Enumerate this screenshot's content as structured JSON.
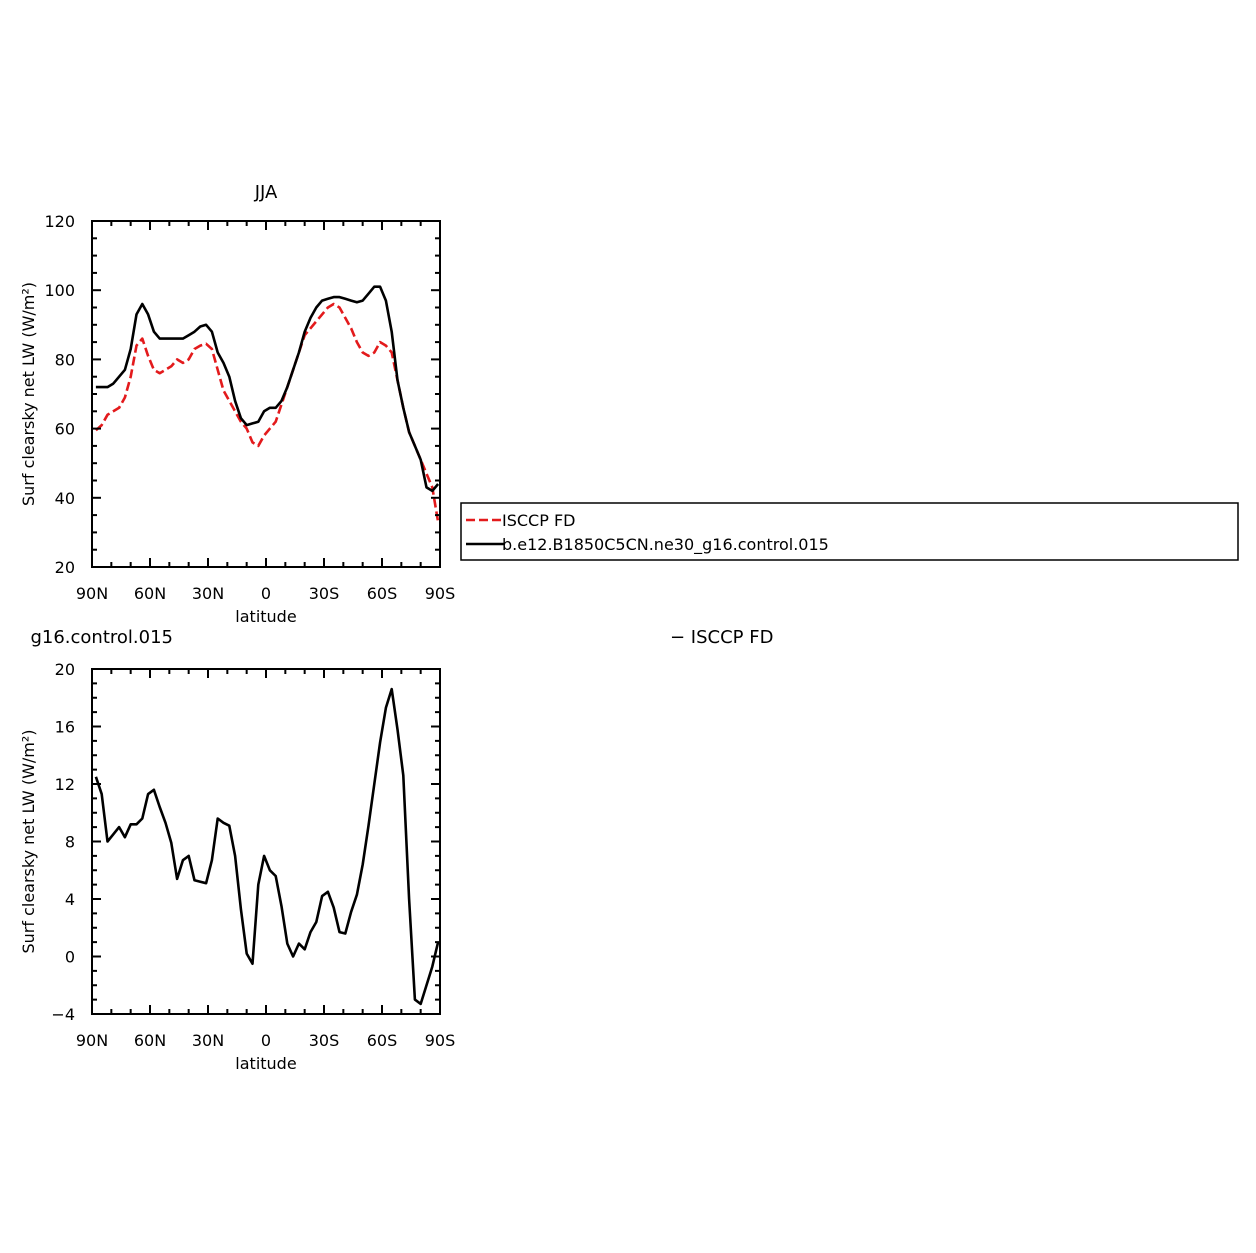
{
  "chart_data": [
    {
      "type": "line",
      "title": "JJA",
      "xlabel": "latitude",
      "ylabel": "Surf clearsky net LW (W/m²)",
      "ylim": [
        20,
        120
      ],
      "yticks": [
        20,
        40,
        60,
        80,
        100,
        120
      ],
      "xlim": [
        90,
        -90
      ],
      "xtick_values": [
        90,
        60,
        30,
        0,
        -30,
        -60,
        -90
      ],
      "xtick_labels": [
        "90N",
        "60N",
        "30N",
        "0",
        "30S",
        "60S",
        "90S"
      ],
      "legend": "right, outside plot",
      "series": [
        {
          "name": "ISCCP FD",
          "color": "#e31a1c",
          "style": "dashed",
          "x": [
            88,
            85,
            82,
            79,
            76,
            73,
            70,
            67,
            64,
            61,
            58,
            55,
            52,
            49,
            46,
            43,
            40,
            37,
            34,
            31,
            28,
            25,
            22,
            19,
            16,
            13,
            10,
            7,
            4,
            1,
            -2,
            -5,
            -8,
            -11,
            -14,
            -17,
            -20,
            -23,
            -26,
            -29,
            -32,
            -35,
            -38,
            -41,
            -44,
            -47,
            -50,
            -53,
            -56,
            -59,
            -62,
            -65,
            -68,
            -71,
            -74,
            -77,
            -80,
            -83,
            -86,
            -89
          ],
          "y": [
            59.5,
            61,
            64,
            65,
            66,
            69,
            75,
            84,
            86,
            81,
            77,
            76,
            77,
            78,
            80,
            79,
            80,
            83,
            84,
            84.5,
            83,
            77,
            71,
            68,
            65,
            62,
            60,
            56,
            55,
            58,
            60,
            62,
            67,
            72,
            77,
            82,
            87,
            89,
            91,
            93,
            95,
            96,
            95,
            92,
            89,
            85,
            82,
            81,
            82,
            85,
            84,
            82,
            74,
            66,
            59,
            55,
            51,
            47,
            43,
            33
          ]
        },
        {
          "name": "b.e12.B1850C5CN.ne30_g16.control.015",
          "color": "#000000",
          "style": "solid",
          "x": [
            88,
            85,
            82,
            79,
            76,
            73,
            70,
            67,
            64,
            61,
            58,
            55,
            52,
            49,
            46,
            43,
            40,
            37,
            34,
            31,
            28,
            25,
            22,
            19,
            16,
            13,
            10,
            7,
            4,
            1,
            -2,
            -5,
            -8,
            -11,
            -14,
            -17,
            -20,
            -23,
            -26,
            -29,
            -32,
            -35,
            -38,
            -41,
            -44,
            -47,
            -50,
            -53,
            -56,
            -59,
            -62,
            -65,
            -68,
            -71,
            -74,
            -77,
            -80,
            -83,
            -86,
            -89
          ],
          "y": [
            72,
            72,
            72,
            73,
            75,
            77,
            83,
            93,
            96,
            93,
            88,
            86,
            86,
            86,
            86,
            86,
            87,
            88,
            89.5,
            90,
            88,
            82,
            79,
            75,
            68,
            63,
            61,
            61.5,
            62,
            65,
            66,
            66,
            68,
            72,
            77,
            82,
            88,
            92,
            95,
            97,
            97.5,
            98,
            98,
            97.5,
            97,
            96.5,
            97,
            99,
            101,
            101,
            97,
            88,
            74,
            66,
            59,
            55,
            51,
            43,
            42,
            44
          ]
        }
      ]
    },
    {
      "type": "line",
      "title": "g16.control.015",
      "title_right": "− ISCCP FD",
      "xlabel": "latitude",
      "ylabel": "Surf clearsky net LW (W/m²)",
      "ylim": [
        -4,
        20
      ],
      "yticks": [
        -4,
        0,
        4,
        8,
        12,
        16,
        20
      ],
      "xlim": [
        90,
        -90
      ],
      "xtick_values": [
        90,
        60,
        30,
        0,
        -30,
        -60,
        -90
      ],
      "xtick_labels": [
        "90N",
        "60N",
        "30N",
        "0",
        "30S",
        "60S",
        "90S"
      ],
      "series": [
        {
          "name": "",
          "color": "#000000",
          "style": "solid",
          "x": [
            88,
            85,
            82,
            79,
            76,
            73,
            70,
            67,
            64,
            61,
            58,
            55,
            52,
            49,
            46,
            43,
            40,
            37,
            34,
            31,
            28,
            25,
            22,
            19,
            16,
            13,
            10,
            7,
            4,
            1,
            -2,
            -5,
            -8,
            -11,
            -14,
            -17,
            -20,
            -23,
            -26,
            -29,
            -32,
            -35,
            -38,
            -41,
            -44,
            -47,
            -50,
            -53,
            -56,
            -59,
            -62,
            -65,
            -68,
            -71,
            -74,
            -77,
            -80,
            -83,
            -86,
            -89
          ],
          "y": [
            12.5,
            11.3,
            8,
            8.5,
            9,
            8.3,
            9.2,
            9.2,
            9.6,
            11.3,
            11.6,
            10.4,
            9.3,
            7.9,
            5.4,
            6.7,
            7,
            5.3,
            5.2,
            5.1,
            6.7,
            9.6,
            9.3,
            9.1,
            7,
            3.3,
            0.2,
            -0.5,
            5,
            7,
            6,
            5.6,
            3.5,
            0.9,
            0,
            0.9,
            0.5,
            1.7,
            2.4,
            4.2,
            4.5,
            3.4,
            1.7,
            1.6,
            3.1,
            4.3,
            6.4,
            9.1,
            12,
            14.9,
            17.3,
            18.6,
            15.8,
            12.6,
            4,
            -3,
            -3.3,
            -2,
            -0.7,
            1
          ]
        }
      ]
    }
  ]
}
